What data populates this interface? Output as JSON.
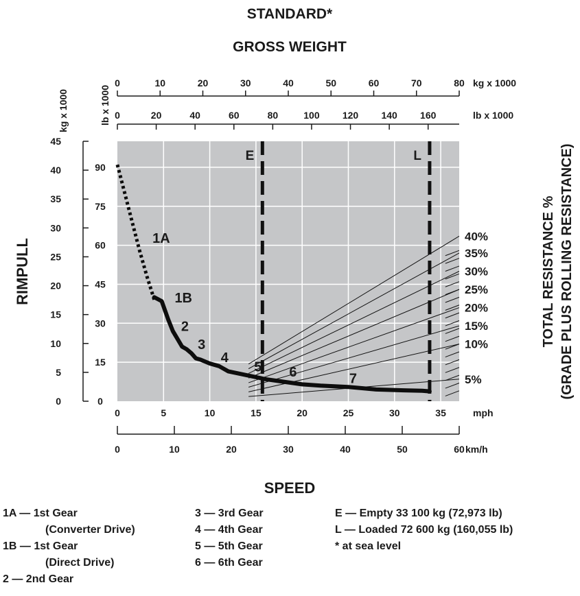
{
  "chart_data": {
    "type": "line",
    "title": "STANDARD*",
    "subtitle": "GROSS WEIGHT",
    "xlabel": "SPEED",
    "ylabel": "RIMPULL",
    "y2label_line1": "TOTAL RESISTANCE %",
    "y2label_line2": "(GRADE PLUS ROLLING RESISTANCE)",
    "grid": true,
    "x_axis_mph": {
      "unit": "mph",
      "range": [
        0,
        37
      ],
      "ticks": [
        "0",
        "5",
        "10",
        "15",
        "20",
        "25",
        "30",
        "35"
      ]
    },
    "x_axis_kmh": {
      "unit": "km/h",
      "range": [
        0,
        60
      ],
      "ticks": [
        "0",
        "10",
        "20",
        "30",
        "40",
        "50",
        "60"
      ]
    },
    "y_axis_kg": {
      "unit": "kg x 1000",
      "range": [
        0,
        45
      ],
      "ticks": [
        "0",
        "5",
        "10",
        "15",
        "20",
        "25",
        "30",
        "35",
        "40",
        "45"
      ]
    },
    "y_axis_lb": {
      "unit": "lb x 1000",
      "range": [
        0,
        100
      ],
      "ticks": [
        "0",
        "15",
        "30",
        "45",
        "60",
        "75",
        "90"
      ]
    },
    "gross_weight_kg": {
      "unit": "kg x 1000",
      "range": [
        0,
        80
      ],
      "ticks": [
        "0",
        "10",
        "20",
        "30",
        "40",
        "50",
        "60",
        "70",
        "80"
      ]
    },
    "gross_weight_lb": {
      "unit": "lb x 1000",
      "range": [
        0,
        176
      ],
      "ticks": [
        "0",
        "20",
        "40",
        "60",
        "80",
        "100",
        "120",
        "140",
        "160"
      ]
    },
    "weight_markers": [
      {
        "label": "E",
        "mph": 15.7
      },
      {
        "label": "L",
        "mph": 33.8
      }
    ],
    "resistance_lines": [
      {
        "label": "40%",
        "left_lb": 14.3,
        "right_lb": 63.5
      },
      {
        "label": "35%",
        "left_lb": 12.5,
        "right_lb": 57.0
      },
      {
        "label": "30%",
        "left_lb": 10.7,
        "right_lb": 50.0
      },
      {
        "label": "25%",
        "left_lb": 8.9,
        "right_lb": 43.0
      },
      {
        "label": "20%",
        "left_lb": 7.1,
        "right_lb": 36.0
      },
      {
        "label": "15%",
        "left_lb": 5.4,
        "right_lb": 29.0
      },
      {
        "label": "10%",
        "left_lb": 3.6,
        "right_lb": 22.0
      },
      {
        "label": "5%",
        "left_lb": 1.8,
        "right_lb": 8.5
      }
    ],
    "series": [
      {
        "name": "1A",
        "style": "dotted",
        "x": [
          0.0,
          0.8,
          1.6,
          2.4,
          3.2,
          4.0
        ],
        "y": [
          91,
          80,
          69,
          58,
          48,
          39
        ]
      },
      {
        "name": "1B-7",
        "style": "solid",
        "x": [
          4.0,
          4.8,
          5.5,
          6.0,
          6.5,
          7.0,
          7.5,
          8.0,
          8.5,
          9.0,
          10.0,
          11.0,
          12.0,
          14.0,
          16.0,
          18.0,
          20.0,
          22.0,
          25.0,
          28.0,
          31.0,
          33.0,
          33.8
        ],
        "y": [
          40,
          38.5,
          31.5,
          27,
          24,
          21,
          20,
          18.5,
          16.5,
          16,
          14.5,
          13.5,
          11.5,
          10,
          8.5,
          7.5,
          6.5,
          6,
          5.5,
          4.5,
          4.2,
          4.0,
          3.8
        ]
      }
    ],
    "gear_labels": [
      {
        "text": "1A",
        "mph": 3.8,
        "lb": 61
      },
      {
        "text": "1B",
        "mph": 6.2,
        "lb": 38
      },
      {
        "text": "2",
        "mph": 6.9,
        "lb": 27
      },
      {
        "text": "3",
        "mph": 8.7,
        "lb": 20
      },
      {
        "text": "4",
        "mph": 11.2,
        "lb": 15
      },
      {
        "text": "5",
        "mph": 14.8,
        "lb": 11.5
      },
      {
        "text": "6",
        "mph": 18.6,
        "lb": 9.5
      },
      {
        "text": "7",
        "mph": 25.1,
        "lb": 7
      }
    ]
  },
  "legend": {
    "col1": [
      "1A — 1st Gear",
      "(Converter Drive)",
      "1B — 1st Gear",
      "(Direct Drive)",
      "2 — 2nd Gear"
    ],
    "col2": [
      "3 — 3rd Gear",
      "4 — 4th Gear",
      "5 — 5th Gear",
      "6 — 6th Gear"
    ],
    "col3": [
      "E — Empty 33 100 kg (72,973 lb)",
      "L — Loaded 72 600 kg (160,055 lb)",
      "* at sea level"
    ]
  }
}
